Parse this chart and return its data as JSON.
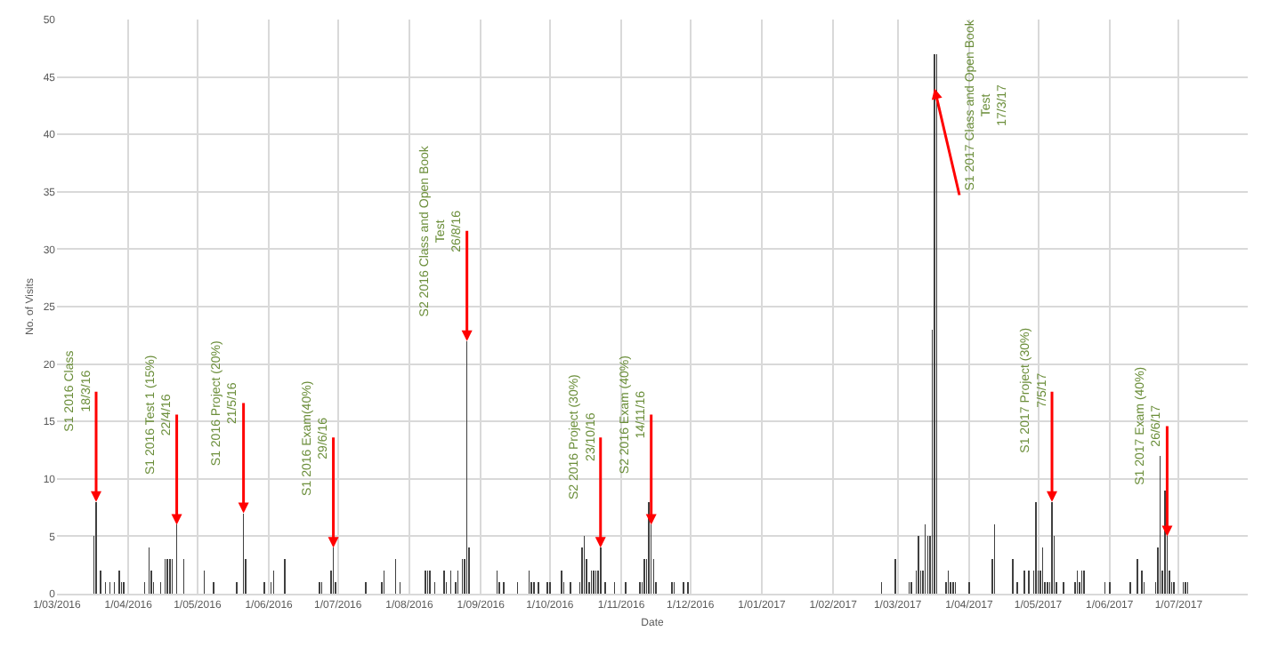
{
  "chart_data": {
    "type": "bar",
    "xlabel": "Date",
    "ylabel": "No. of Visits",
    "x": [
      "2016-03-17",
      "2016-03-18",
      "2016-03-20",
      "2016-03-22",
      "2016-03-24",
      "2016-03-26",
      "2016-03-28",
      "2016-03-29",
      "2016-03-30",
      "2016-04-08",
      "2016-04-10",
      "2016-04-11",
      "2016-04-12",
      "2016-04-15",
      "2016-04-17",
      "2016-04-18",
      "2016-04-19",
      "2016-04-20",
      "2016-04-22",
      "2016-04-25",
      "2016-05-04",
      "2016-05-08",
      "2016-05-18",
      "2016-05-21",
      "2016-05-22",
      "2016-05-30",
      "2016-06-02",
      "2016-06-03",
      "2016-06-08",
      "2016-06-23",
      "2016-06-24",
      "2016-06-28",
      "2016-06-29",
      "2016-06-30",
      "2016-07-13",
      "2016-07-20",
      "2016-07-21",
      "2016-07-26",
      "2016-07-28",
      "2016-08-08",
      "2016-08-09",
      "2016-08-10",
      "2016-08-12",
      "2016-08-16",
      "2016-08-17",
      "2016-08-19",
      "2016-08-21",
      "2016-08-22",
      "2016-08-24",
      "2016-08-25",
      "2016-08-26",
      "2016-08-27",
      "2016-09-08",
      "2016-09-09",
      "2016-09-11",
      "2016-09-17",
      "2016-09-22",
      "2016-09-23",
      "2016-09-24",
      "2016-09-26",
      "2016-09-30",
      "2016-10-01",
      "2016-10-06",
      "2016-10-07",
      "2016-10-10",
      "2016-10-14",
      "2016-10-15",
      "2016-10-16",
      "2016-10-17",
      "2016-10-18",
      "2016-10-19",
      "2016-10-20",
      "2016-10-21",
      "2016-10-22",
      "2016-10-23",
      "2016-10-25",
      "2016-10-29",
      "2016-11-03",
      "2016-11-09",
      "2016-11-10",
      "2016-11-11",
      "2016-11-12",
      "2016-11-13",
      "2016-11-14",
      "2016-11-15",
      "2016-11-16",
      "2016-11-23",
      "2016-11-24",
      "2016-11-28",
      "2016-11-30",
      "2017-02-22",
      "2017-02-28",
      "2017-03-06",
      "2017-03-07",
      "2017-03-09",
      "2017-03-10",
      "2017-03-11",
      "2017-03-12",
      "2017-03-13",
      "2017-03-14",
      "2017-03-15",
      "2017-03-16",
      "2017-03-17",
      "2017-03-18",
      "2017-03-22",
      "2017-03-23",
      "2017-03-24",
      "2017-03-25",
      "2017-03-26",
      "2017-04-01",
      "2017-04-11",
      "2017-04-12",
      "2017-04-20",
      "2017-04-22",
      "2017-04-25",
      "2017-04-27",
      "2017-04-29",
      "2017-04-30",
      "2017-05-01",
      "2017-05-02",
      "2017-05-03",
      "2017-05-04",
      "2017-05-05",
      "2017-05-06",
      "2017-05-07",
      "2017-05-08",
      "2017-05-09",
      "2017-05-12",
      "2017-05-17",
      "2017-05-18",
      "2017-05-19",
      "2017-05-20",
      "2017-05-21",
      "2017-05-30",
      "2017-06-01",
      "2017-06-10",
      "2017-06-13",
      "2017-06-15",
      "2017-06-16",
      "2017-06-21",
      "2017-06-22",
      "2017-06-23",
      "2017-06-24",
      "2017-06-25",
      "2017-06-26",
      "2017-06-27",
      "2017-06-28",
      "2017-06-29",
      "2017-07-03",
      "2017-07-04",
      "2017-07-05"
    ],
    "values": [
      5,
      8,
      2,
      1,
      1,
      1,
      2,
      1,
      1,
      1,
      4,
      2,
      1,
      1,
      3,
      3,
      3,
      3,
      6,
      3,
      2,
      1,
      1,
      7,
      3,
      1,
      1,
      2,
      3,
      1,
      1,
      2,
      4,
      1,
      1,
      1,
      2,
      3,
      1,
      2,
      2,
      2,
      1,
      2,
      1,
      2,
      1,
      2,
      3,
      3,
      22,
      4,
      2,
      1,
      1,
      1,
      2,
      1,
      1,
      1,
      1,
      1,
      2,
      1,
      1,
      1,
      4,
      5,
      3,
      1,
      2,
      2,
      2,
      2,
      4,
      1,
      1,
      1,
      1,
      1,
      3,
      3,
      8,
      6,
      3,
      1,
      1,
      1,
      1,
      1,
      1,
      3,
      1,
      1,
      2,
      5,
      2,
      2,
      6,
      5,
      5,
      23,
      47,
      47,
      1,
      2,
      1,
      1,
      1,
      1,
      3,
      6,
      3,
      1,
      2,
      2,
      2,
      8,
      2,
      2,
      4,
      1,
      1,
      1,
      8,
      5,
      1,
      1,
      1,
      2,
      1,
      2,
      2,
      1,
      1,
      1,
      3,
      2,
      1,
      1,
      4,
      12,
      2,
      9,
      5,
      2,
      1,
      1,
      1,
      1,
      1
    ],
    "color": "#404040",
    "xlim": [
      "2016-03-01",
      "2017-07-31"
    ],
    "xticks": [
      {
        "value": "2016-03-01",
        "label": "1/03/2016"
      },
      {
        "value": "2016-04-01",
        "label": "1/04/2016"
      },
      {
        "value": "2016-05-01",
        "label": "1/05/2016"
      },
      {
        "value": "2016-06-01",
        "label": "1/06/2016"
      },
      {
        "value": "2016-07-01",
        "label": "1/07/2016"
      },
      {
        "value": "2016-08-01",
        "label": "1/08/2016"
      },
      {
        "value": "2016-09-01",
        "label": "1/09/2016"
      },
      {
        "value": "2016-10-01",
        "label": "1/10/2016"
      },
      {
        "value": "2016-11-01",
        "label": "1/11/2016"
      },
      {
        "value": "2016-12-01",
        "label": "1/12/2016"
      },
      {
        "value": "2017-01-01",
        "label": "1/01/2017"
      },
      {
        "value": "2017-02-01",
        "label": "1/02/2017"
      },
      {
        "value": "2017-03-01",
        "label": "1/03/2017"
      },
      {
        "value": "2017-04-01",
        "label": "1/04/2017"
      },
      {
        "value": "2017-05-01",
        "label": "1/05/2017"
      },
      {
        "value": "2017-06-01",
        "label": "1/06/2017"
      },
      {
        "value": "2017-07-01",
        "label": "1/07/2017"
      }
    ],
    "ylim": [
      0,
      50
    ],
    "yticks": [
      0,
      5,
      10,
      15,
      20,
      25,
      30,
      35,
      40,
      45,
      50
    ],
    "grid": true,
    "annotations": [
      {
        "text": "S1 2016 Class\n18/3/16",
        "x": "2016-03-18",
        "y": 8
      },
      {
        "text": "S1 2016 Test 1 (15%)\n22/4/16",
        "x": "2016-04-22",
        "y": 6
      },
      {
        "text": "S1 2016 Project (20%)\n21/5/16",
        "x": "2016-05-21",
        "y": 7
      },
      {
        "text": "S1 2016 Exam(40%)\n29/6/16",
        "x": "2016-06-29",
        "y": 4
      },
      {
        "text": "S2 2016 Class and Open Book\nTest\n26/8/16",
        "x": "2016-08-26",
        "y": 22
      },
      {
        "text": "S2 2016 Project (30%)\n23/10/16",
        "x": "2016-10-23",
        "y": 4
      },
      {
        "text": "S2 2016 Exam (40%)\n14/11/16",
        "x": "2016-11-14",
        "y": 6
      },
      {
        "text": "S1 2017 Class and Open Book\nTest\n17/3/17",
        "x": "2017-03-17",
        "y": 44
      },
      {
        "text": "S1 2017 Project (30%)\n7/5/17",
        "x": "2017-05-07",
        "y": 8
      },
      {
        "text": "S1 2017 Exam (40%)\n26/6/17",
        "x": "2017-06-26",
        "y": 5
      }
    ]
  }
}
